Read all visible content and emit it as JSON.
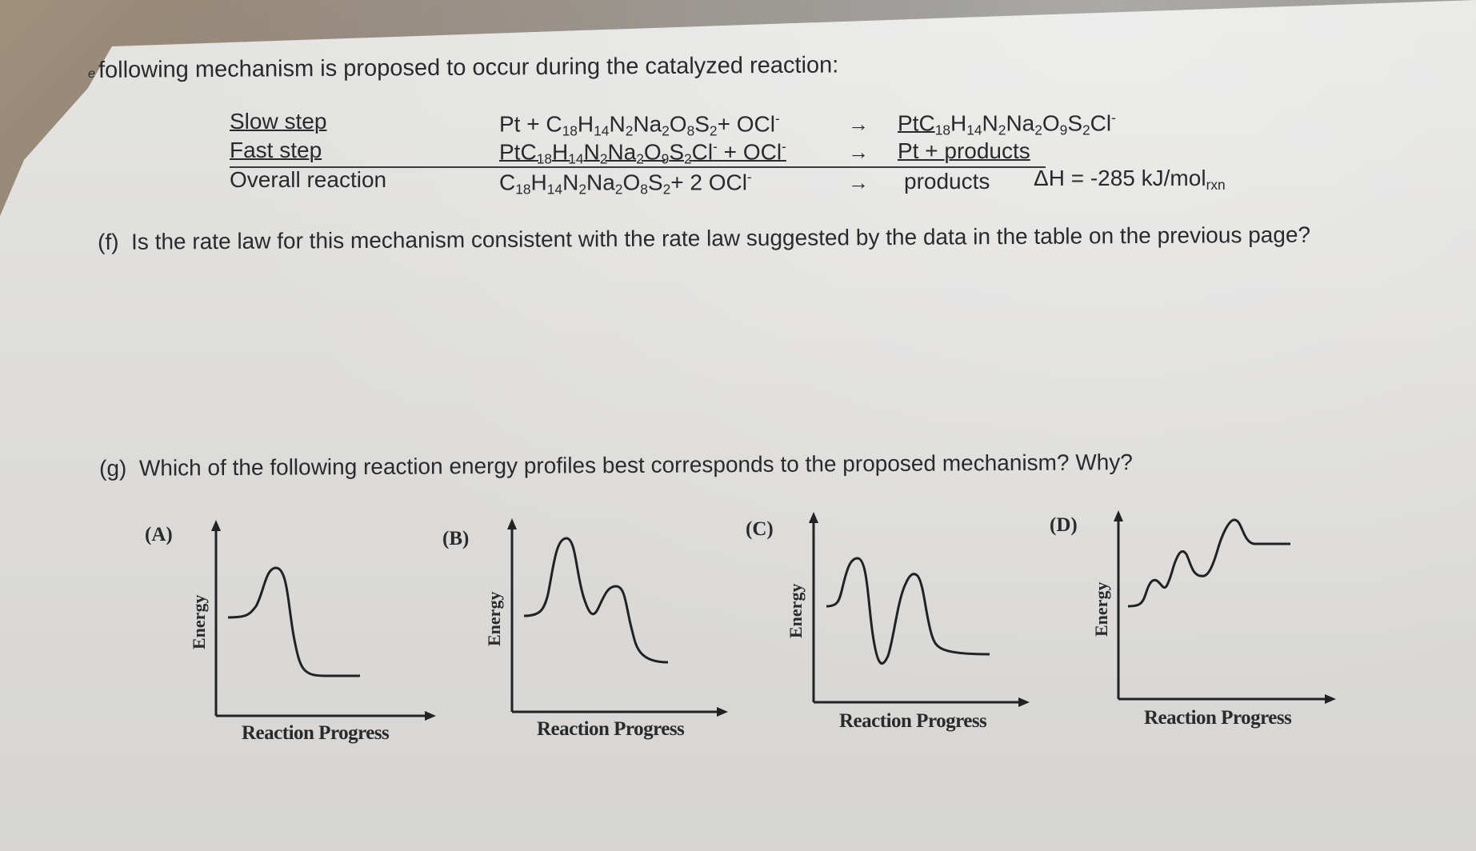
{
  "intro": {
    "prefix": "e",
    "text": "following mechanism is proposed to occur during the catalyzed reaction:"
  },
  "mechanism": {
    "steps": [
      {
        "label": "Slow step",
        "reactants": [
          "Pt + C",
          "18",
          "H",
          "14",
          "N",
          "2",
          "Na",
          "2",
          "O",
          "8",
          "S",
          "2",
          "+  OCl",
          "-"
        ],
        "arrow": "→",
        "products": [
          "PtC",
          "18",
          "H",
          "14",
          "N",
          "2",
          "Na",
          "2",
          "O",
          "9",
          "S",
          "2",
          "Cl",
          "-"
        ]
      },
      {
        "label": "Fast step",
        "reactants": [
          "PtC",
          "18",
          "H",
          "14",
          "N",
          "2",
          "Na",
          "2",
          "O",
          "9",
          "S",
          "2",
          "Cl",
          "-",
          " + OCl",
          "-"
        ],
        "arrow": "→",
        "products": [
          "Pt + products"
        ]
      },
      {
        "label": "Overall reaction",
        "reactants": [
          "C",
          "18",
          "H",
          "14",
          "N",
          "2",
          "Na",
          "2",
          "O",
          "8",
          "S",
          "2",
          "+ 2 OCl",
          "-"
        ],
        "arrow": "→",
        "products": [
          "products"
        ],
        "enthalpy": "ΔH = -285 kJ/mol",
        "enthalpy_sub": "rxn"
      }
    ]
  },
  "question_f": {
    "label": "(f)",
    "text": "Is the rate law for this mechanism consistent with the rate law suggested by the data in the table on the previous page?"
  },
  "question_g": {
    "label": "(g)",
    "text": "Which of the following reaction energy profiles best corresponds to the proposed mechanism?  Why?"
  },
  "profiles": [
    {
      "label": "(A)",
      "ylabel": "Energy",
      "xlabel": "Reaction Progress"
    },
    {
      "label": "(B)",
      "ylabel": "Energy",
      "xlabel": "Reaction Progress"
    },
    {
      "label": "(C)",
      "ylabel": "Energy",
      "xlabel": "Reaction Progress"
    },
    {
      "label": "(D)",
      "ylabel": "Energy",
      "xlabel": "Reaction Progress"
    }
  ],
  "colors": {
    "ink": "#2a2a2a",
    "paper": "#dddcda"
  }
}
